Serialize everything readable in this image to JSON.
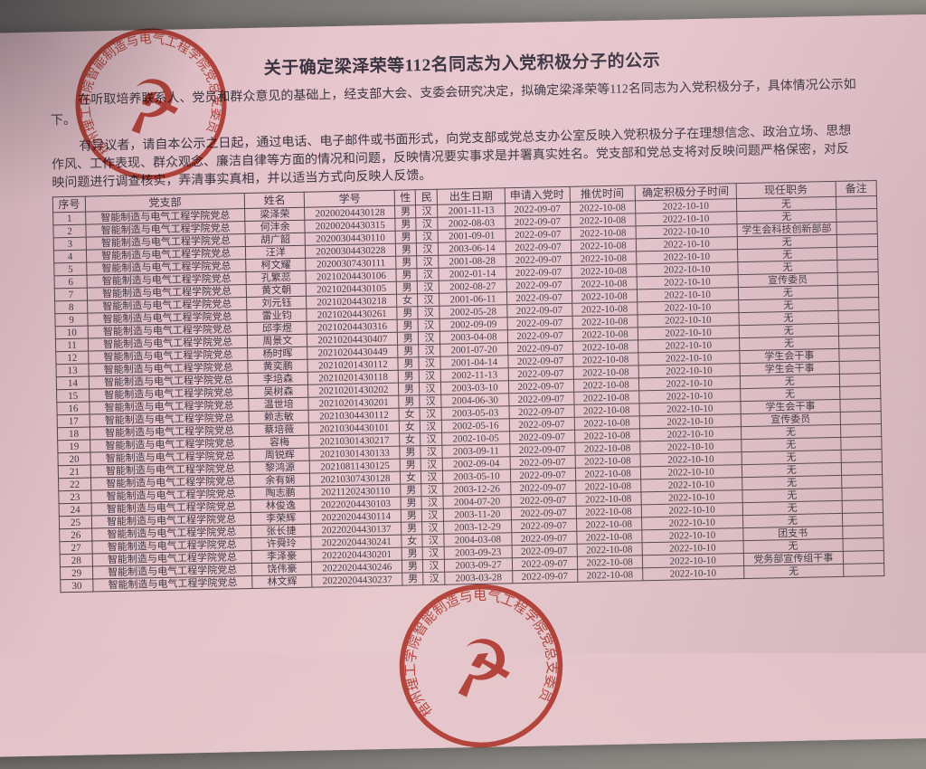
{
  "document": {
    "title": "关于确定梁泽荣等112名同志为入党积极分子的公示",
    "paragraphs": [
      {
        "lines": [
          "在听取培养联系人、党员和群众意见的基础上，经支部大会、支委会研究决定，拟确定梁泽荣等112名同志为入党积极分子，具体情况公示如",
          "下。"
        ]
      },
      {
        "lines": [
          "有异议者，请自本公示之日起，通过电话、电子邮件或书面形式，向党支部或党总支办公室反映入党积极分子在理想信念、政治立场、思想",
          "作风、工作表现、群众观念、廉洁自律等方面的情况和问题，反映情况要实事求是并署真实姓名。党支部和党总支将对反映问题严格保密，对反",
          "映问题进行调查核实，弄清事实真相，并以适当方式向反映人反馈。"
        ]
      }
    ]
  },
  "table": {
    "headers": [
      "序号",
      "党支部",
      "姓名",
      "学号",
      "性",
      "民",
      "出生日期",
      "申请入党时",
      "推优时间",
      "确定积极分子时间",
      "现任职务",
      "备注"
    ],
    "rows": [
      [
        "1",
        "智能制造与电气工程学院党总",
        "梁泽荣",
        "20200204430128",
        "男",
        "汉",
        "2001-11-13",
        "2022-09-07",
        "2022-10-08",
        "2022-10-10",
        "无",
        ""
      ],
      [
        "2",
        "智能制造与电气工程学院党总",
        "何沣余",
        "20200204430315",
        "男",
        "汉",
        "2002-08-03",
        "2022-09-07",
        "2022-10-08",
        "2022-10-10",
        "无",
        ""
      ],
      [
        "3",
        "智能制造与电气工程学院党总",
        "胡广韶",
        "20200304430110",
        "男",
        "汉",
        "2001-09-01",
        "2022-09-07",
        "2022-10-08",
        "2022-10-10",
        "学生会科技创新部部",
        ""
      ],
      [
        "4",
        "智能制造与电气工程学院党总",
        "汪洋",
        "20200304430228",
        "男",
        "汉",
        "2003-06-14",
        "2022-09-07",
        "2022-10-08",
        "2022-10-10",
        "无",
        ""
      ],
      [
        "5",
        "智能制造与电气工程学院党总",
        "柯文耀",
        "20200307430111",
        "男",
        "汉",
        "2001-08-28",
        "2022-09-07",
        "2022-10-08",
        "2022-10-10",
        "无",
        ""
      ],
      [
        "6",
        "智能制造与电气工程学院党总",
        "孔繁蕊",
        "20210204430106",
        "男",
        "汉",
        "2002-01-14",
        "2022-09-07",
        "2022-10-08",
        "2022-10-10",
        "无",
        ""
      ],
      [
        "7",
        "智能制造与电气工程学院党总",
        "黄文朝",
        "20210204430105",
        "男",
        "汉",
        "2002-08-27",
        "2022-09-07",
        "2022-10-08",
        "2022-10-10",
        "宣传委员",
        ""
      ],
      [
        "8",
        "智能制造与电气工程学院党总",
        "刘元钰",
        "20210204430218",
        "女",
        "汉",
        "2001-06-11",
        "2022-09-07",
        "2022-10-08",
        "2022-10-10",
        "无",
        ""
      ],
      [
        "9",
        "智能制造与电气工程学院党总",
        "雷业钧",
        "20210204430261",
        "男",
        "汉",
        "2002-05-28",
        "2022-09-07",
        "2022-10-08",
        "2022-10-10",
        "无",
        ""
      ],
      [
        "10",
        "智能制造与电气工程学院党总",
        "邱李煜",
        "20210204430316",
        "男",
        "汉",
        "2002-09-09",
        "2022-09-07",
        "2022-10-08",
        "2022-10-10",
        "无",
        ""
      ],
      [
        "11",
        "智能制造与电气工程学院党总",
        "周景文",
        "20210204430407",
        "男",
        "汉",
        "2003-04-08",
        "2022-09-07",
        "2022-10-08",
        "2022-10-10",
        "无",
        ""
      ],
      [
        "12",
        "智能制造与电气工程学院党总",
        "杨时晖",
        "20210204430449",
        "男",
        "汉",
        "2001-07-20",
        "2022-09-07",
        "2022-10-08",
        "2022-10-10",
        "无",
        ""
      ],
      [
        "13",
        "智能制造与电气工程学院党总",
        "黄奕鹏",
        "20210201430112",
        "男",
        "汉",
        "2001-04-14",
        "2022-09-07",
        "2022-10-08",
        "2022-10-10",
        "学生会干事",
        ""
      ],
      [
        "14",
        "智能制造与电气工程学院党总",
        "李培森",
        "20210201430118",
        "男",
        "汉",
        "2002-11-13",
        "2022-09-07",
        "2022-10-08",
        "2022-10-10",
        "学生会干事",
        ""
      ],
      [
        "15",
        "智能制造与电气工程学院党总",
        "吴树森",
        "20210201430202",
        "男",
        "汉",
        "2003-03-10",
        "2022-09-07",
        "2022-10-08",
        "2022-10-10",
        "无",
        ""
      ],
      [
        "16",
        "智能制造与电气工程学院党总",
        "温世培",
        "20210201430201",
        "男",
        "汉",
        "2004-06-30",
        "2022-09-07",
        "2022-10-08",
        "2022-10-10",
        "无",
        ""
      ],
      [
        "17",
        "智能制造与电气工程学院党总",
        "赖志敏",
        "20210304430112",
        "女",
        "汉",
        "2003-05-03",
        "2022-09-07",
        "2022-10-08",
        "2022-10-10",
        "学生会干事",
        ""
      ],
      [
        "18",
        "智能制造与电气工程学院党总",
        "蔡培薇",
        "20210304430101",
        "女",
        "汉",
        "2002-05-16",
        "2022-09-07",
        "2022-10-08",
        "2022-10-10",
        "宣传委员",
        ""
      ],
      [
        "19",
        "智能制造与电气工程学院党总",
        "容梅",
        "20210301430217",
        "女",
        "汉",
        "2002-10-05",
        "2022-09-07",
        "2022-10-08",
        "2022-10-10",
        "无",
        ""
      ],
      [
        "20",
        "智能制造与电气工程学院党总",
        "周锐辉",
        "20210301430133",
        "男",
        "汉",
        "2003-09-11",
        "2022-09-07",
        "2022-10-08",
        "2022-10-10",
        "无",
        ""
      ],
      [
        "21",
        "智能制造与电气工程学院党总",
        "黎鸿源",
        "20210811430125",
        "男",
        "汉",
        "2002-09-04",
        "2022-09-07",
        "2022-10-08",
        "2022-10-10",
        "无",
        ""
      ],
      [
        "22",
        "智能制造与电气工程学院党总",
        "余有娴",
        "20210307430128",
        "女",
        "汉",
        "2003-05-10",
        "2022-09-07",
        "2022-10-08",
        "2022-10-10",
        "无",
        ""
      ],
      [
        "23",
        "智能制造与电气工程学院党总",
        "陶志鹏",
        "20211202430110",
        "男",
        "汉",
        "2003-12-26",
        "2022-09-07",
        "2022-10-08",
        "2022-10-10",
        "无",
        ""
      ],
      [
        "24",
        "智能制造与电气工程学院党总",
        "林俊逸",
        "20220204430103",
        "男",
        "汉",
        "2004-07-20",
        "2022-09-07",
        "2022-10-08",
        "2022-10-10",
        "无",
        ""
      ],
      [
        "25",
        "智能制造与电气工程学院党总",
        "李荣辉",
        "20220204430114",
        "男",
        "汉",
        "2003-11-20",
        "2022-09-07",
        "2022-10-08",
        "2022-10-10",
        "无",
        ""
      ],
      [
        "26",
        "智能制造与电气工程学院党总",
        "张长捷",
        "20220204430137",
        "男",
        "汉",
        "2003-12-29",
        "2022-09-07",
        "2022-10-08",
        "2022-10-10",
        "无",
        ""
      ],
      [
        "27",
        "智能制造与电气工程学院党总",
        "许舜玲",
        "20220204430241",
        "女",
        "汉",
        "2004-03-08",
        "2022-09-07",
        "2022-10-08",
        "2022-10-10",
        "团支书",
        ""
      ],
      [
        "28",
        "智能制造与电气工程学院党总",
        "李泽豪",
        "20220204430201",
        "男",
        "汉",
        "2003-09-23",
        "2022-09-07",
        "2022-10-08",
        "2022-10-10",
        "无",
        ""
      ],
      [
        "29",
        "智能制造与电气工程学院党总",
        "饶伟豪",
        "20220204430246",
        "男",
        "汉",
        "2003-09-27",
        "2022-09-07",
        "2022-10-08",
        "2022-10-10",
        "党务部宣传组干事",
        ""
      ],
      [
        "30",
        "智能制造与电气工程学院党总",
        "林文辉",
        "20220204430237",
        "男",
        "汉",
        "2003-03-28",
        "2022-09-07",
        "2022-10-08",
        "2022-10-10",
        "无",
        ""
      ]
    ]
  },
  "stamps": {
    "ring_text": "梧州理工学院智能制造与电气工程学院党总支委员会",
    "symbol": "☭",
    "color": "#bf3a2b"
  },
  "colors": {
    "paper_pink": "#e7c3cb",
    "ink": "#3b3440",
    "table_border": "#514249",
    "stamp_red": "#bf3a2b",
    "photo_background": "#878380"
  }
}
